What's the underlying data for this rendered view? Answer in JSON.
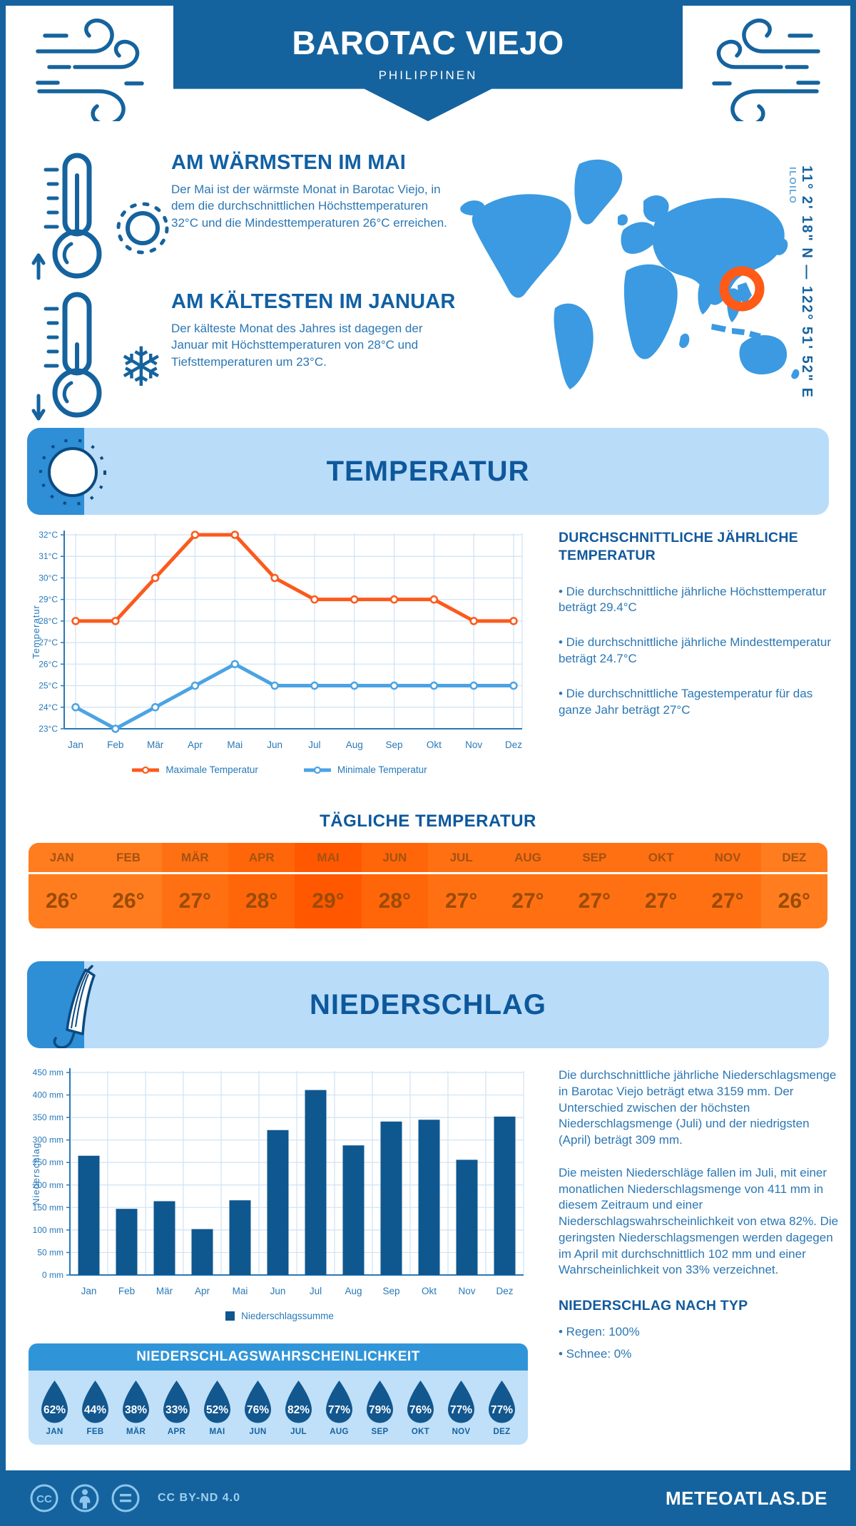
{
  "page": {
    "title": "BAROTAC VIEJO",
    "subtitle": "PHILIPPINEN"
  },
  "location": {
    "coordinates": "11° 2' 18\" N — 122° 51' 52\" E",
    "region": "ILOILO"
  },
  "warmest": {
    "title": "AM WÄRMSTEN IM MAI",
    "text": "Der Mai ist der wärmste Monat in Barotac Viejo, in dem die durchschnittlichen Höchsttemperaturen 32°C und die Mindesttemperaturen 26°C erreichen."
  },
  "coldest": {
    "title": "AM KÄLTESTEN IM JANUAR",
    "text": "Der kälteste Monat des Jahres ist dagegen der Januar mit Höchsttemperaturen von 28°C und Tiefsttemperaturen um 23°C."
  },
  "temperature_section": {
    "banner": "TEMPERATUR",
    "annual_heading": "DURCHSCHNITTLICHE JÄHRLICHE TEMPERATUR",
    "bullets": [
      "• Die durchschnittliche jährliche Höchsttemperatur beträgt 29.4°C",
      "• Die durchschnittliche jährliche Mindesttemperatur beträgt 24.7°C",
      "• Die durchschnittliche Tagestemperatur für das ganze Jahr beträgt 27°C"
    ]
  },
  "precipitation_section": {
    "banner": "NIEDERSCHLAG",
    "paragraph1": "Die durchschnittliche jährliche Niederschlagsmenge in Barotac Viejo beträgt etwa 3159 mm. Der Unterschied zwischen der höchsten Niederschlagsmenge (Juli) und der niedrigsten (April) beträgt 309 mm.",
    "paragraph2": "Die meisten Niederschläge fallen im Juli, mit einer monatlichen Niederschlagsmenge von 411 mm in diesem Zeitraum und einer Niederschlagswahrscheinlichkeit von etwa 82%. Die geringsten Niederschlagsmengen werden dagegen im April mit durchschnittlich 102 mm und einer Wahrscheinlichkeit von 33% verzeichnet.",
    "type_heading": "NIEDERSCHLAG NACH TYP",
    "type_bullets": [
      "• Regen: 100%",
      "• Schnee: 0%"
    ]
  },
  "footer": {
    "license": "CC BY-ND 4.0",
    "brand": "METEOATLAS.DE"
  },
  "colors": {
    "navy": "#15639e",
    "banner_light_blue": "#b9dcf9",
    "banner_tab_blue": "#2e8ed6",
    "map_blue": "#3b9ae1",
    "marker_orange": "#ff5a17",
    "max_temp_orange": "#fb5a1d",
    "min_temp_blue": "#4ba3e3",
    "bar_blue": "#0f578f",
    "drop_blue": "#13578f",
    "axis_blue": "#2779b8",
    "grid_blue": "#cfe2f4",
    "table_text_brown": "#9a4b06",
    "prob_header_blue": "#3095d8",
    "prob_body_blue": "#bfe0f8"
  },
  "chart_data": [
    {
      "type": "line",
      "x": [
        "Jan",
        "Feb",
        "Mär",
        "Apr",
        "Mai",
        "Jun",
        "Jul",
        "Aug",
        "Sep",
        "Okt",
        "Nov",
        "Dez"
      ],
      "series": [
        {
          "name": "Maximale Temperatur",
          "color": "#fb5a1d",
          "values": [
            28,
            28,
            30,
            32,
            32,
            30,
            29,
            29,
            29,
            29,
            28,
            28
          ]
        },
        {
          "name": "Minimale Temperatur",
          "color": "#4ba3e3",
          "values": [
            24,
            23,
            24,
            25,
            26,
            25,
            25,
            25,
            25,
            25,
            25,
            25
          ]
        }
      ],
      "ylabel": "Temperatur",
      "ylim": [
        23,
        32
      ],
      "ytick_step": 1,
      "ytick_suffix": "°C",
      "grid": true,
      "legend_position": "bottom"
    },
    {
      "type": "bar",
      "categories": [
        "Jan",
        "Feb",
        "Mär",
        "Apr",
        "Mai",
        "Jun",
        "Jul",
        "Aug",
        "Sep",
        "Okt",
        "Nov",
        "Dez"
      ],
      "values": [
        265,
        147,
        164,
        102,
        166,
        322,
        411,
        288,
        341,
        345,
        256,
        352
      ],
      "color": "#0f578f",
      "ylabel": "Niederschlag",
      "ylim": [
        0,
        450
      ],
      "ytick_step": 50,
      "ytick_suffix": " mm",
      "legend": "Niederschlagssumme",
      "grid": true,
      "legend_position": "bottom"
    },
    {
      "type": "table",
      "title": "TÄGLICHE TEMPERATUR",
      "categories": [
        "JAN",
        "FEB",
        "MÄR",
        "APR",
        "MAI",
        "JUN",
        "JUL",
        "AUG",
        "SEP",
        "OKT",
        "NOV",
        "DEZ"
      ],
      "values": [
        26,
        26,
        27,
        28,
        29,
        28,
        27,
        27,
        27,
        27,
        27,
        26
      ],
      "value_suffix": "°",
      "cell_colors": {
        "26": "#ff7d1f",
        "27": "#ff7013",
        "28": "#ff6609",
        "29": "#ff5800"
      }
    },
    {
      "type": "table",
      "title": "NIEDERSCHLAGSWAHRSCHEINLICHKEIT",
      "categories": [
        "JAN",
        "FEB",
        "MÄR",
        "APR",
        "MAI",
        "JUN",
        "JUL",
        "AUG",
        "SEP",
        "OKT",
        "NOV",
        "DEZ"
      ],
      "values": [
        62,
        44,
        38,
        33,
        52,
        76,
        82,
        77,
        79,
        76,
        77,
        77
      ],
      "value_suffix": "%"
    }
  ]
}
